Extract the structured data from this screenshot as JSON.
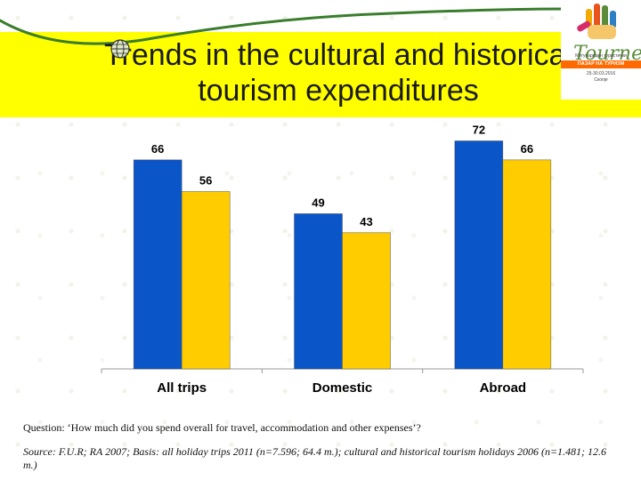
{
  "slide": {
    "title": "Trends in the cultural and historical tourism expenditures",
    "question": "Question: ‘How much did you spend overall for travel, accommodation and other expenses’?",
    "source": "Source: F.U.R; RA 2007; Basis: all holiday trips 2011 (n=7.596; 64.4 m.); cultural and historical tourism holidays 2006 (n=1.481; 12.6 m.)"
  },
  "logo": {
    "word": "Tournet",
    "line1": "Меѓународен туристички",
    "line2": "ПАЗАР НА ТУРИЗМ",
    "line3": "25-30.03.2016",
    "line4": "Скопје"
  },
  "colors": {
    "title_band": "#ffff00",
    "series_blue": "#0a55c8",
    "series_yellow": "#ffcc00",
    "logo_accent": "#ff6a00",
    "top_line": "#3a7d2c"
  },
  "icons": [
    "globe-icon",
    "tournet-hand-logo"
  ],
  "chart_data": {
    "type": "bar",
    "categories": [
      "All trips",
      "Domestic",
      "Abroad"
    ],
    "series": [
      {
        "values": [
          66,
          49,
          72
        ],
        "color": "#0a55c8"
      },
      {
        "values": [
          56,
          43,
          66
        ],
        "color": "#ffcc00"
      }
    ],
    "value_labels": [
      [
        "66",
        "49",
        "72"
      ],
      [
        "56",
        "43",
        "66"
      ]
    ],
    "ylim": [
      0,
      80
    ],
    "grid": false,
    "legend": "none",
    "xlabel": "",
    "ylabel": ""
  }
}
